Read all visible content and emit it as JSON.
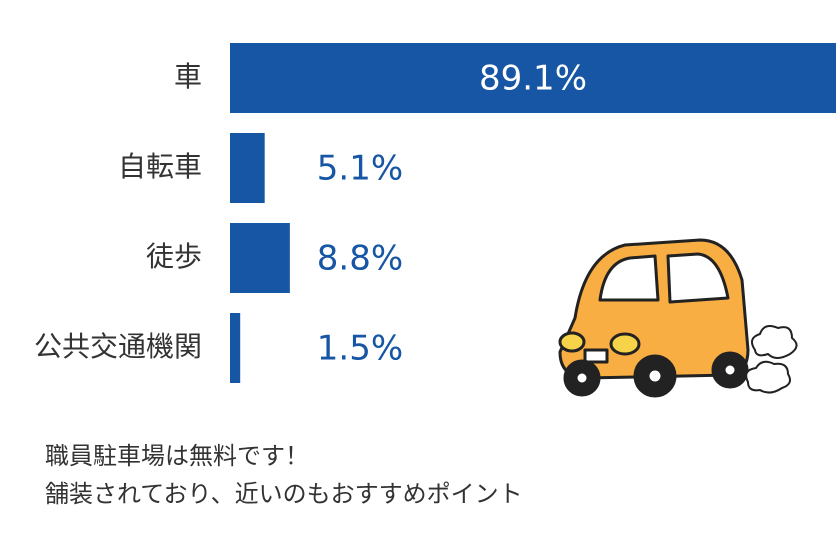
{
  "chart_data": {
    "type": "bar",
    "orientation": "horizontal",
    "categories": [
      "車",
      "自転車",
      "徒歩",
      "公共交通機関"
    ],
    "values": [
      89.1,
      5.1,
      8.8,
      1.5
    ],
    "value_labels": [
      "89.1%",
      "5.1%",
      "8.8%",
      "1.5%"
    ],
    "color": "#1656a4",
    "notes": [
      "職員駐車場は無料です！",
      "舗装されており、近いのもおすすめポイント"
    ]
  }
}
